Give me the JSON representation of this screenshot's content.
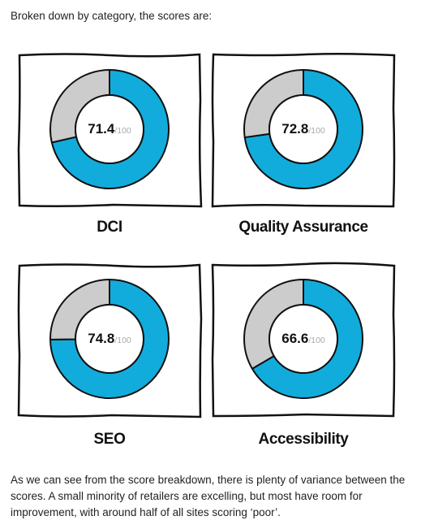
{
  "intro_text": "Broken down by category, the scores are:",
  "outro_text": "As we can see from the score breakdown, there is plenty of variance between the scores. A small minority of retailers are excelling, but most have room for improvement, with around half of all sites scoring ‘poor’.",
  "colors": {
    "filled": "#12acdc",
    "remaining": "#cccccc",
    "outline": "#111111"
  },
  "chart_data": [
    {
      "type": "pie",
      "label": "DCI",
      "value": 71.4,
      "value_text": "71.4",
      "max_text": "/100",
      "max": 100
    },
    {
      "type": "pie",
      "label": "Quality Assurance",
      "value": 72.8,
      "value_text": "72.8",
      "max_text": "/100",
      "max": 100
    },
    {
      "type": "pie",
      "label": "SEO",
      "value": 74.8,
      "value_text": "74.8",
      "max_text": "/100",
      "max": 100
    },
    {
      "type": "pie",
      "label": "Accessibility",
      "value": 66.6,
      "value_text": "66.6",
      "max_text": "/100",
      "max": 100
    }
  ]
}
